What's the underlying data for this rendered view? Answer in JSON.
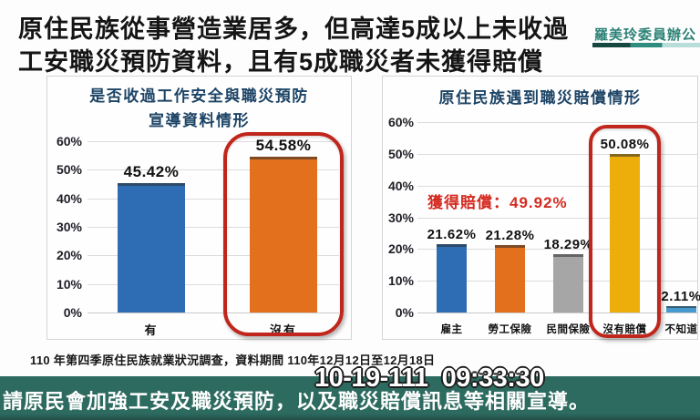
{
  "header": {
    "title_line1": "原住民族從事營造業居多，但高達5成以上未收過",
    "title_line2": "工安職災預防資料，且有5成職災者未獲得賠償"
  },
  "credit": {
    "text": "羅美玲委員辦公"
  },
  "source_note": "110 年第四季原住民族就業狀況調查，資料期間 110年12月12日至12月18日",
  "footer": {
    "caption": "請原民會加強工安及職災預防，以及職災賠償訊息等相關宣導。"
  },
  "timestamp": "10-19-111  09:33:30",
  "colors": {
    "bar_blue": "#2e6db4",
    "bar_orange": "#e2701d",
    "bar_gray": "#a6a6a6",
    "bar_gold": "#edae0c",
    "bar_lightblue": "#4699cd",
    "highlight_red": "#c0261b",
    "annotation_red": "#d42a20",
    "footer_teal": "#2d6a60",
    "credit_teal": "#2c8276",
    "chart_title_navy": "#1d4466"
  },
  "chart_data": [
    {
      "type": "bar",
      "title_lines": [
        "是否收過工作安全與職災預防",
        "宣導資料情形"
      ],
      "categories": [
        "有",
        "沒有"
      ],
      "values": [
        45.42,
        54.58
      ],
      "value_labels": [
        "45.42%",
        "54.58%"
      ],
      "bar_colors": [
        "#2e6db4",
        "#e2701d"
      ],
      "ylim": [
        0,
        60
      ],
      "yticks": [
        "60%",
        "50%",
        "40%",
        "30%",
        "20%",
        "10%",
        "0%"
      ],
      "grid": true,
      "legend": "none",
      "highlight_index": 1
    },
    {
      "type": "bar",
      "title_lines": [
        "原住民族遇到職災賠償情形"
      ],
      "categories": [
        "雇主",
        "勞工保險",
        "民間保險",
        "沒有賠償",
        "不知道"
      ],
      "values": [
        21.62,
        21.28,
        18.29,
        50.08,
        2.11
      ],
      "value_labels": [
        "21.62%",
        "21.28%",
        "18.29%",
        "50.08%",
        "2.11%"
      ],
      "bar_colors": [
        "#2e6db4",
        "#e2701d",
        "#a6a6a6",
        "#edae0c",
        "#4699cd"
      ],
      "ylim": [
        0,
        60
      ],
      "yticks": [
        "60%",
        "50%",
        "40%",
        "30%",
        "20%",
        "10%",
        "0%"
      ],
      "grid": true,
      "legend": "none",
      "highlight_index": 3,
      "annotation": "獲得賠償：49.92%"
    }
  ]
}
